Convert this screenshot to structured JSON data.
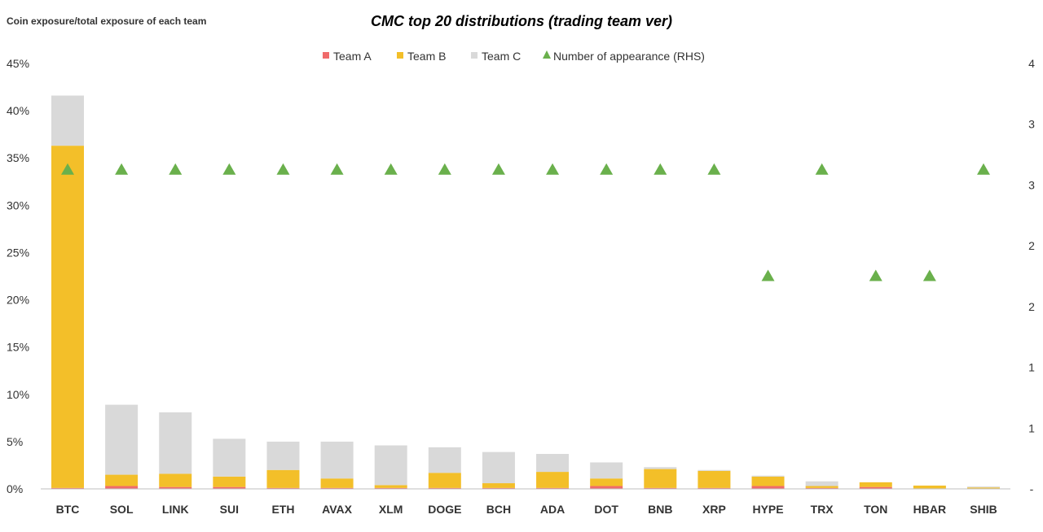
{
  "chart_data": {
    "type": "bar",
    "stacked": true,
    "title": "CMC top 20 distributions (trading team ver)",
    "ylabel": "Coin exposure/total exposure of each team",
    "ylim": [
      0,
      45
    ],
    "y_ticks": [
      "0%",
      "5%",
      "10%",
      "15%",
      "20%",
      "25%",
      "30%",
      "35%",
      "40%",
      "45%"
    ],
    "y2lim": [
      0,
      4
    ],
    "y2_ticks": [
      "-",
      "1",
      "1",
      "2",
      "2",
      "3",
      "3",
      "4"
    ],
    "categories": [
      "BTC",
      "SOL",
      "LINK",
      "SUI",
      "ETH",
      "AVAX",
      "XLM",
      "DOGE",
      "BCH",
      "ADA",
      "DOT",
      "BNB",
      "XRP",
      "HYPE",
      "TRX",
      "TON",
      "HBAR",
      "SHIB"
    ],
    "series": [
      {
        "name": "Team A",
        "color": "#f06b6b",
        "type": "bar",
        "values": [
          0.1,
          0.3,
          0.2,
          0.2,
          0.1,
          0.1,
          0.1,
          0.1,
          0.1,
          0.1,
          0.3,
          0.1,
          0.1,
          0.3,
          0.1,
          0.2,
          0.05,
          0.05
        ]
      },
      {
        "name": "Team B",
        "color": "#f3bf29",
        "type": "bar",
        "values": [
          36.2,
          1.2,
          1.4,
          1.1,
          1.9,
          1.0,
          0.3,
          1.6,
          0.5,
          1.7,
          0.8,
          2.0,
          1.8,
          1.0,
          0.2,
          0.5,
          0.3,
          0.1
        ]
      },
      {
        "name": "Team C",
        "color": "#d9d9d9",
        "type": "bar",
        "values": [
          5.3,
          7.4,
          6.5,
          4.0,
          3.0,
          3.9,
          4.2,
          2.7,
          3.3,
          1.9,
          1.7,
          0.2,
          0.1,
          0.1,
          0.5,
          0.0,
          0.0,
          0.1
        ]
      },
      {
        "name": "Number of appearance (RHS)",
        "color": "#6ab04c",
        "type": "scatter",
        "marker": "triangle",
        "axis": "right",
        "values": [
          3,
          3,
          3,
          3,
          3,
          3,
          3,
          3,
          3,
          3,
          3,
          3,
          3,
          2,
          3,
          2,
          2,
          3
        ]
      }
    ],
    "legend_position": "top-center",
    "grid": false
  }
}
